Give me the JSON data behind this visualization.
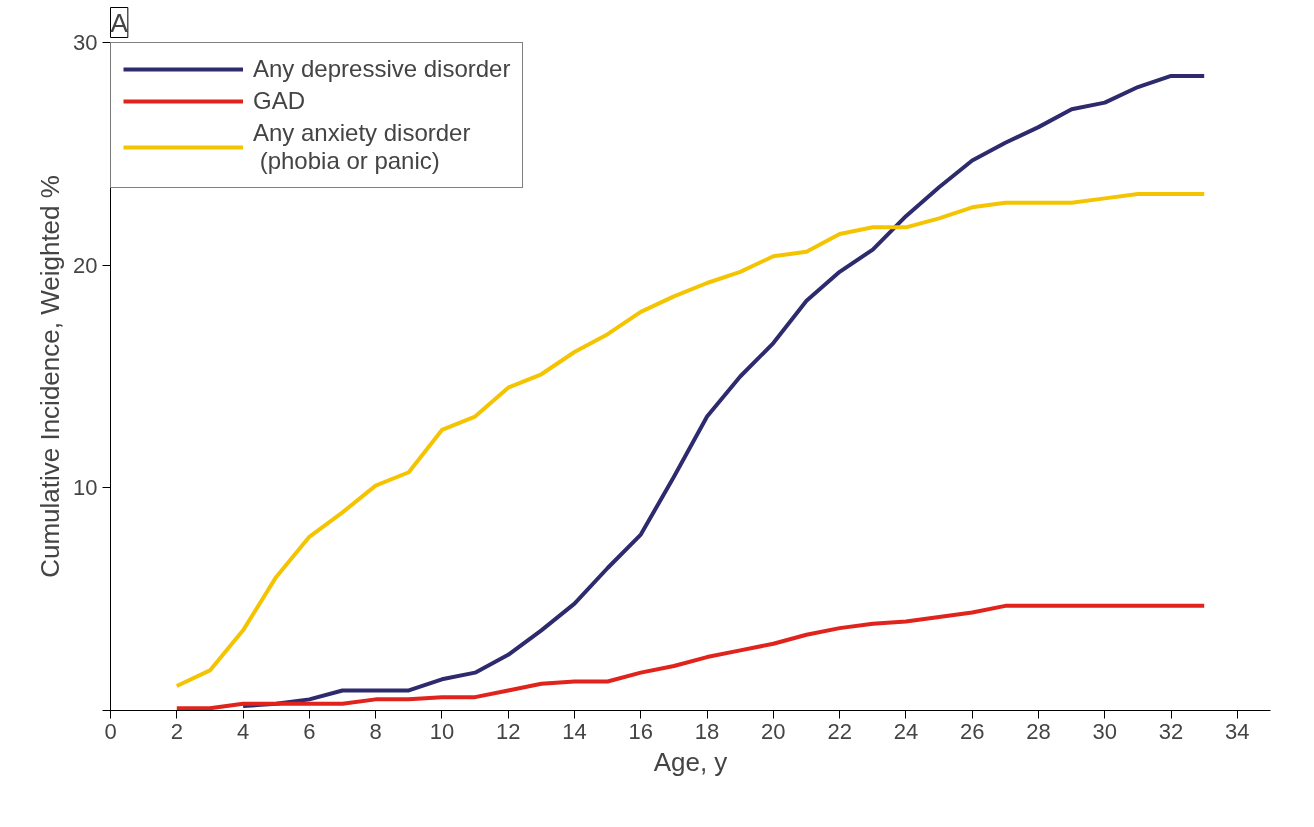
{
  "chart_data": {
    "type": "line",
    "xlabel": "Age, y",
    "ylabel": "Cumulative Incidence, Weighted %",
    "annotations": [
      "A"
    ],
    "xlim": [
      0,
      35
    ],
    "ylim": [
      0,
      30
    ],
    "xticks": [
      0,
      2,
      4,
      6,
      8,
      10,
      12,
      14,
      16,
      18,
      20,
      22,
      24,
      26,
      28,
      30,
      32,
      34
    ],
    "yticks": [
      {
        "value": 0,
        "label": null
      },
      10,
      20,
      30
    ],
    "grid": false,
    "legend": "top left",
    "marker": "none",
    "line_style": "solid",
    "series": [
      {
        "name": "Any depressive disorder",
        "color": "#2e2a6e",
        "x": [
          4,
          5,
          6,
          7,
          8,
          9,
          10,
          11,
          12,
          13,
          14,
          15,
          16,
          17,
          18,
          19,
          20,
          21,
          22,
          23,
          24,
          25,
          26,
          27,
          28,
          29,
          30,
          31,
          32,
          33
        ],
        "values": [
          0.2,
          0.3,
          0.5,
          0.9,
          0.9,
          0.9,
          1.4,
          1.7,
          2.5,
          3.6,
          4.8,
          6.4,
          7.9,
          10.5,
          13.2,
          15.0,
          16.5,
          18.4,
          19.7,
          20.7,
          22.2,
          23.5,
          24.7,
          25.5,
          26.2,
          27.0,
          27.3,
          28.0,
          28.5,
          28.5
        ]
      },
      {
        "name": "GAD",
        "color": "#e0231c",
        "x": [
          2,
          3,
          4,
          5,
          6,
          7,
          8,
          9,
          10,
          11,
          12,
          13,
          14,
          15,
          16,
          17,
          18,
          19,
          20,
          21,
          22,
          23,
          24,
          25,
          26,
          27,
          28,
          29,
          30,
          31,
          32,
          33
        ],
        "values": [
          0.1,
          0.1,
          0.3,
          0.3,
          0.3,
          0.3,
          0.5,
          0.5,
          0.6,
          0.6,
          0.9,
          1.2,
          1.3,
          1.3,
          1.7,
          2.0,
          2.4,
          2.7,
          3.0,
          3.4,
          3.7,
          3.9,
          4.0,
          4.2,
          4.4,
          4.7,
          4.7,
          4.7,
          4.7,
          4.7,
          4.7,
          4.7
        ]
      },
      {
        "name": "Any anxiety disorder\n (phobia or panic)",
        "color": "#f5c400",
        "x": [
          2,
          3,
          4,
          5,
          6,
          7,
          8,
          9,
          10,
          11,
          12,
          13,
          14,
          15,
          16,
          17,
          18,
          19,
          20,
          21,
          22,
          23,
          24,
          25,
          26,
          27,
          28,
          29,
          30,
          31,
          32,
          33
        ],
        "values": [
          1.1,
          1.8,
          3.6,
          6.0,
          7.8,
          8.9,
          10.1,
          10.7,
          12.6,
          13.2,
          14.5,
          15.1,
          16.1,
          16.9,
          17.9,
          18.6,
          19.2,
          19.7,
          20.4,
          20.6,
          21.4,
          21.7,
          21.7,
          22.1,
          22.6,
          22.8,
          22.8,
          22.8,
          23.0,
          23.2,
          23.2,
          23.2
        ]
      }
    ]
  }
}
